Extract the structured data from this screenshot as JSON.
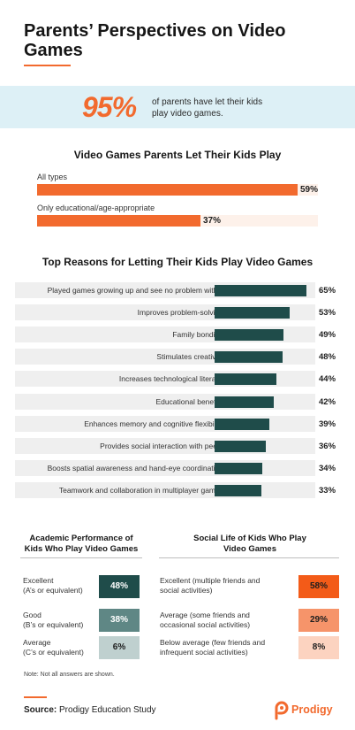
{
  "title": "Parents’ Perspectives on Video Games",
  "hero": {
    "percent": "95%",
    "text": "of parents have let their kids play video games."
  },
  "colors": {
    "orange": "#f26a2e",
    "teal_dark": "#1f4c4a",
    "teal_mid": "#5f8785",
    "teal_light": "#bfd0cf"
  },
  "chart_data": [
    {
      "type": "bar",
      "title": "Video Games Parents Let Their Kids Play",
      "categories": [
        "All types",
        "Only educational/age-appropriate"
      ],
      "values": [
        59,
        37
      ],
      "value_labels": [
        "59%",
        "37%"
      ],
      "ylim": [
        0,
        100
      ]
    },
    {
      "type": "bar",
      "title": "Top Reasons for Letting Their Kids Play Video Games",
      "categories": [
        "Played games growing up and see no problem with it",
        "Improves problem-solving",
        "Family bonding",
        "Stimulates creativity",
        "Increases technological literacy",
        "Educational benefits",
        "Enhances memory and cognitive flexibility",
        "Provides social interaction with peers",
        "Boosts spatial awareness and hand-eye coordination",
        "Teamwork and collaboration in multiplayer games"
      ],
      "values": [
        65,
        53,
        49,
        48,
        44,
        42,
        39,
        36,
        34,
        33
      ],
      "value_labels": [
        "65%",
        "53%",
        "49%",
        "48%",
        "44%",
        "42%",
        "39%",
        "36%",
        "34%",
        "33%"
      ],
      "ylim": [
        0,
        65
      ]
    },
    {
      "type": "table",
      "title": "Academic Performance of Kids Who Play Video Games",
      "categories": [
        "Excellent (A’s or equivalent)",
        "Good (B’s or equivalent)",
        "Average (C’s or equivalent)"
      ],
      "values": [
        48,
        38,
        6
      ],
      "value_labels": [
        "48%",
        "38%",
        "6%"
      ]
    },
    {
      "type": "table",
      "title": "Social Life of Kids Who Play Video Games",
      "categories": [
        "Excellent (multiple friends and social activities)",
        "Average (some friends and occasional social activities)",
        "Below average (few friends and infrequent social activities)"
      ],
      "values": [
        58,
        29,
        8
      ],
      "value_labels": [
        "58%",
        "29%",
        "8%"
      ]
    }
  ],
  "academic": [
    {
      "line1": "Excellent",
      "line2": "(A’s or equivalent)"
    },
    {
      "line1": "Good",
      "line2": "(B’s or equivalent)"
    },
    {
      "line1": "Average",
      "line2": "(C’s or equivalent)"
    }
  ],
  "social": [
    {
      "line1": "Excellent (multiple friends and",
      "line2": "social activities)"
    },
    {
      "line1": "Average (some friends and",
      "line2": "occasional social activities)"
    },
    {
      "line1": "Below average (few friends and",
      "line2": "infrequent social activities)"
    }
  ],
  "academic_header": {
    "line1": "Academic Performance of",
    "line2": "Kids Who Play Video Games"
  },
  "social_header": {
    "line1": "Social Life of Kids Who Play",
    "line2": "Video Games"
  },
  "note": "Note: Not all answers are shown.",
  "source": {
    "label": "Source:",
    "text": "Prodigy Education Study"
  },
  "logo": {
    "name": "Prodigy",
    "icon": "prodigy-logo-icon"
  }
}
